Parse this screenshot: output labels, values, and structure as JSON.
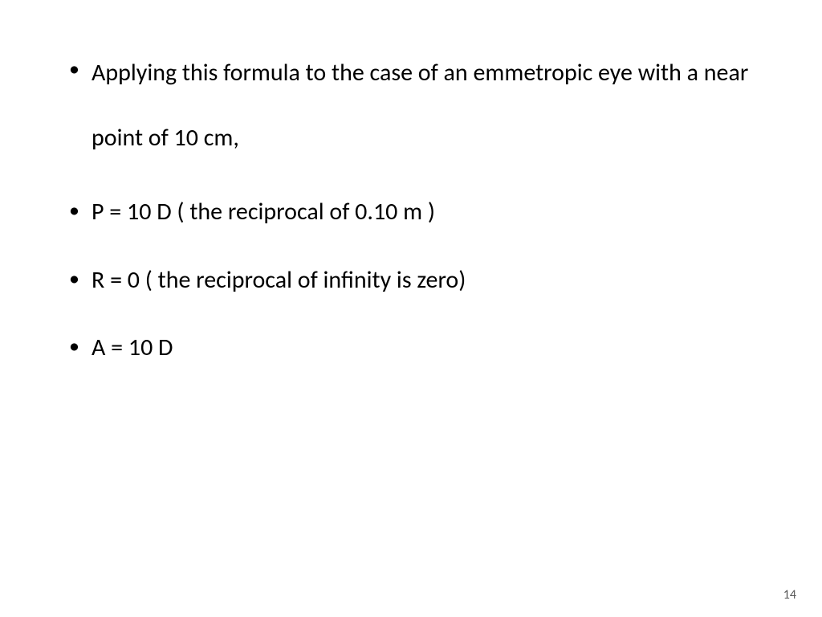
{
  "slide": {
    "bullets": [
      "Applying this formula to the case of an emmetropic eye with a near point of 10 cm,",
      "P = 10 D ( the reciprocal of 0.10 m )",
      "R = 0 ( the reciprocal of infinity is zero)",
      "A = 10 D"
    ],
    "page_number": "14",
    "text_color": "#000000",
    "background_color": "#ffffff",
    "font_size_pt": 30,
    "page_number_font_size_pt": 16
  }
}
